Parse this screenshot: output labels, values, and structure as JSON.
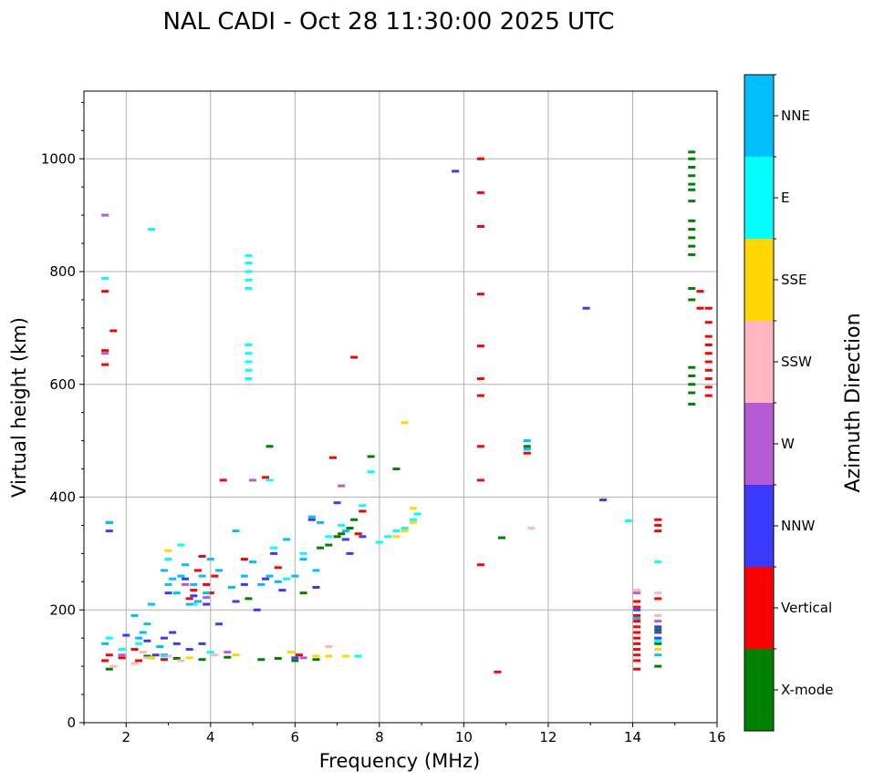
{
  "chart_data": {
    "type": "scatter",
    "title": "NAL CADI - Oct 28 11:30:00 2025 UTC",
    "xlabel": "Frequency (MHz)",
    "ylabel": "Virtual height (km)",
    "xlim": [
      1,
      16
    ],
    "ylim": [
      0,
      1120
    ],
    "grid": true,
    "x_ticks": [
      2,
      4,
      6,
      8,
      10,
      12,
      14,
      16
    ],
    "x_tick_labels": [
      "2",
      "4",
      "6",
      "8",
      "10",
      "12",
      "14",
      "16"
    ],
    "y_ticks": [
      0,
      200,
      400,
      600,
      800,
      1000
    ],
    "y_tick_labels": [
      "0",
      "200",
      "400",
      "600",
      "800",
      "1000"
    ],
    "colorbar": {
      "title": "Azimuth Direction",
      "categories": [
        {
          "name": "X-mode",
          "color": "#008000"
        },
        {
          "name": "Vertical",
          "color": "#ff0000"
        },
        {
          "name": "NNW",
          "color": "#3a3aff"
        },
        {
          "name": "W",
          "color": "#b65ad6"
        },
        {
          "name": "SSW",
          "color": "#ffb6c1"
        },
        {
          "name": "SSE",
          "color": "#ffd700"
        },
        {
          "name": "E",
          "color": "#00ffff"
        },
        {
          "name": "NNE",
          "color": "#00bfff"
        }
      ]
    },
    "series": [
      {
        "name": "X-mode",
        "points": [
          [
            1.6,
            95
          ],
          [
            2.5,
            118
          ],
          [
            3.2,
            114
          ],
          [
            3.8,
            112
          ],
          [
            4.4,
            116
          ],
          [
            4.9,
            220
          ],
          [
            5.2,
            112
          ],
          [
            5.4,
            490
          ],
          [
            5.6,
            114
          ],
          [
            6.0,
            110
          ],
          [
            6.2,
            230
          ],
          [
            6.5,
            112
          ],
          [
            6.6,
            310
          ],
          [
            6.8,
            315
          ],
          [
            7.0,
            330
          ],
          [
            7.1,
            335
          ],
          [
            7.3,
            345
          ],
          [
            7.4,
            360
          ],
          [
            7.6,
            375
          ],
          [
            7.8,
            472
          ],
          [
            8.4,
            450
          ],
          [
            10.9,
            328
          ],
          [
            11.5,
            490
          ],
          [
            14.6,
            100
          ],
          [
            14.6,
            140
          ],
          [
            14.6,
            165
          ],
          [
            15.4,
            565
          ],
          [
            15.4,
            585
          ],
          [
            15.4,
            600
          ],
          [
            15.4,
            615
          ],
          [
            15.4,
            630
          ],
          [
            15.4,
            750
          ],
          [
            15.4,
            770
          ],
          [
            15.4,
            830
          ],
          [
            15.4,
            845
          ],
          [
            15.4,
            860
          ],
          [
            15.4,
            875
          ],
          [
            15.4,
            890
          ],
          [
            15.4,
            925
          ],
          [
            15.4,
            945
          ],
          [
            15.4,
            955
          ],
          [
            15.4,
            970
          ],
          [
            15.4,
            985
          ],
          [
            15.4,
            1000
          ],
          [
            15.4,
            1012
          ]
        ]
      },
      {
        "name": "Vertical",
        "points": [
          [
            1.5,
            110
          ],
          [
            1.5,
            635
          ],
          [
            1.5,
            660
          ],
          [
            1.5,
            765
          ],
          [
            1.6,
            120
          ],
          [
            1.7,
            695
          ],
          [
            1.9,
            115
          ],
          [
            2.2,
            130
          ],
          [
            2.3,
            110
          ],
          [
            2.6,
            115
          ],
          [
            2.9,
            112
          ],
          [
            3.5,
            220
          ],
          [
            3.6,
            235
          ],
          [
            3.7,
            270
          ],
          [
            3.8,
            295
          ],
          [
            3.9,
            245
          ],
          [
            4.0,
            230
          ],
          [
            4.1,
            260
          ],
          [
            4.3,
            430
          ],
          [
            4.8,
            290
          ],
          [
            5.3,
            435
          ],
          [
            5.6,
            275
          ],
          [
            6.1,
            120
          ],
          [
            6.9,
            470
          ],
          [
            7.4,
            648
          ],
          [
            7.5,
            335
          ],
          [
            7.6,
            375
          ],
          [
            10.4,
            1000
          ],
          [
            10.4,
            940
          ],
          [
            10.4,
            880
          ],
          [
            10.4,
            760
          ],
          [
            10.4,
            668
          ],
          [
            10.4,
            610
          ],
          [
            10.4,
            580
          ],
          [
            10.4,
            490
          ],
          [
            10.4,
            430
          ],
          [
            10.4,
            280
          ],
          [
            10.8,
            90
          ],
          [
            11.5,
            478
          ],
          [
            14.1,
            95
          ],
          [
            14.1,
            110
          ],
          [
            14.1,
            120
          ],
          [
            14.1,
            130
          ],
          [
            14.1,
            140
          ],
          [
            14.1,
            150
          ],
          [
            14.1,
            160
          ],
          [
            14.1,
            170
          ],
          [
            14.1,
            180
          ],
          [
            14.1,
            190
          ],
          [
            14.1,
            205
          ],
          [
            14.1,
            215
          ],
          [
            14.6,
            220
          ],
          [
            14.6,
            340
          ],
          [
            14.6,
            350
          ],
          [
            14.6,
            360
          ],
          [
            15.6,
            735
          ],
          [
            15.6,
            765
          ],
          [
            15.8,
            580
          ],
          [
            15.8,
            595
          ],
          [
            15.8,
            610
          ],
          [
            15.8,
            625
          ],
          [
            15.8,
            640
          ],
          [
            15.8,
            655
          ],
          [
            15.8,
            670
          ],
          [
            15.8,
            685
          ],
          [
            15.8,
            710
          ],
          [
            15.8,
            735
          ]
        ]
      },
      {
        "name": "NNW",
        "points": [
          [
            1.6,
            340
          ],
          [
            1.6,
            355
          ],
          [
            2.0,
            155
          ],
          [
            2.5,
            145
          ],
          [
            2.7,
            120
          ],
          [
            2.9,
            150
          ],
          [
            3.0,
            230
          ],
          [
            3.1,
            160
          ],
          [
            3.2,
            140
          ],
          [
            3.4,
            255
          ],
          [
            3.5,
            130
          ],
          [
            3.6,
            225
          ],
          [
            3.8,
            140
          ],
          [
            3.9,
            210
          ],
          [
            4.2,
            175
          ],
          [
            4.6,
            215
          ],
          [
            4.8,
            245
          ],
          [
            5.1,
            200
          ],
          [
            5.3,
            255
          ],
          [
            5.5,
            300
          ],
          [
            5.7,
            235
          ],
          [
            6.0,
            115
          ],
          [
            6.4,
            360
          ],
          [
            6.5,
            240
          ],
          [
            7.0,
            390
          ],
          [
            7.2,
            325
          ],
          [
            7.3,
            300
          ],
          [
            7.6,
            330
          ],
          [
            9.8,
            978
          ],
          [
            12.9,
            735
          ],
          [
            13.3,
            395
          ],
          [
            14.1,
            200
          ],
          [
            14.6,
            150
          ],
          [
            14.6,
            160
          ],
          [
            14.6,
            170
          ]
        ]
      },
      {
        "name": "W",
        "points": [
          [
            1.5,
            900
          ],
          [
            1.5,
            655
          ],
          [
            1.9,
            120
          ],
          [
            2.9,
            120
          ],
          [
            3.4,
            245
          ],
          [
            3.9,
            222
          ],
          [
            4.4,
            125
          ],
          [
            5.0,
            430
          ],
          [
            6.2,
            115
          ],
          [
            7.1,
            420
          ],
          [
            14.1,
            230
          ],
          [
            14.6,
            180
          ]
        ]
      },
      {
        "name": "SSW",
        "points": [
          [
            1.7,
            100
          ],
          [
            2.2,
            105
          ],
          [
            2.4,
            125
          ],
          [
            2.5,
            115
          ],
          [
            3.0,
            118
          ],
          [
            3.3,
            110
          ],
          [
            4.1,
            120
          ],
          [
            6.8,
            135
          ],
          [
            11.6,
            345
          ],
          [
            14.1,
            235
          ],
          [
            14.6,
            230
          ],
          [
            14.6,
            190
          ]
        ]
      },
      {
        "name": "SSE",
        "points": [
          [
            2.6,
            115
          ],
          [
            3.0,
            305
          ],
          [
            3.5,
            115
          ],
          [
            4.6,
            120
          ],
          [
            5.9,
            125
          ],
          [
            6.5,
            118
          ],
          [
            6.8,
            118
          ],
          [
            7.2,
            118
          ],
          [
            8.4,
            330
          ],
          [
            8.6,
            340
          ],
          [
            8.6,
            532
          ],
          [
            8.8,
            355
          ],
          [
            8.8,
            380
          ],
          [
            14.6,
            130
          ]
        ]
      },
      {
        "name": "E",
        "points": [
          [
            1.5,
            788
          ],
          [
            1.6,
            150
          ],
          [
            1.9,
            130
          ],
          [
            2.3,
            140
          ],
          [
            2.6,
            875
          ],
          [
            2.9,
            118
          ],
          [
            3.0,
            290
          ],
          [
            3.3,
            315
          ],
          [
            3.6,
            210
          ],
          [
            4.0,
            125
          ],
          [
            4.9,
            610
          ],
          [
            4.9,
            625
          ],
          [
            4.9,
            640
          ],
          [
            4.9,
            655
          ],
          [
            4.9,
            670
          ],
          [
            4.9,
            770
          ],
          [
            4.9,
            785
          ],
          [
            4.9,
            800
          ],
          [
            4.9,
            815
          ],
          [
            4.9,
            828
          ],
          [
            5.4,
            430
          ],
          [
            5.5,
            310
          ],
          [
            5.8,
            255
          ],
          [
            6.2,
            300
          ],
          [
            6.8,
            330
          ],
          [
            7.1,
            350
          ],
          [
            7.5,
            118
          ],
          [
            7.6,
            385
          ],
          [
            7.8,
            445
          ],
          [
            8.0,
            320
          ],
          [
            8.2,
            330
          ],
          [
            8.4,
            340
          ],
          [
            8.6,
            345
          ],
          [
            8.8,
            360
          ],
          [
            8.9,
            370
          ],
          [
            13.9,
            358
          ],
          [
            14.6,
            285
          ],
          [
            14.6,
            145
          ]
        ]
      },
      {
        "name": "NNE",
        "points": [
          [
            1.5,
            140
          ],
          [
            1.6,
            355
          ],
          [
            2.2,
            190
          ],
          [
            2.3,
            150
          ],
          [
            2.4,
            160
          ],
          [
            2.5,
            175
          ],
          [
            2.6,
            210
          ],
          [
            2.8,
            135
          ],
          [
            2.9,
            270
          ],
          [
            3.0,
            245
          ],
          [
            3.1,
            255
          ],
          [
            3.2,
            230
          ],
          [
            3.3,
            260
          ],
          [
            3.4,
            280
          ],
          [
            3.5,
            210
          ],
          [
            3.6,
            245
          ],
          [
            3.7,
            215
          ],
          [
            3.8,
            260
          ],
          [
            3.9,
            230
          ],
          [
            4.0,
            290
          ],
          [
            4.2,
            270
          ],
          [
            4.5,
            240
          ],
          [
            4.6,
            340
          ],
          [
            4.8,
            260
          ],
          [
            5.0,
            285
          ],
          [
            5.2,
            245
          ],
          [
            5.4,
            260
          ],
          [
            5.6,
            250
          ],
          [
            5.8,
            325
          ],
          [
            6.0,
            260
          ],
          [
            6.2,
            290
          ],
          [
            6.4,
            365
          ],
          [
            6.5,
            270
          ],
          [
            6.6,
            355
          ],
          [
            7.2,
            340
          ],
          [
            11.5,
            485
          ],
          [
            11.5,
            500
          ],
          [
            14.1,
            185
          ],
          [
            14.6,
            120
          ]
        ]
      }
    ]
  }
}
